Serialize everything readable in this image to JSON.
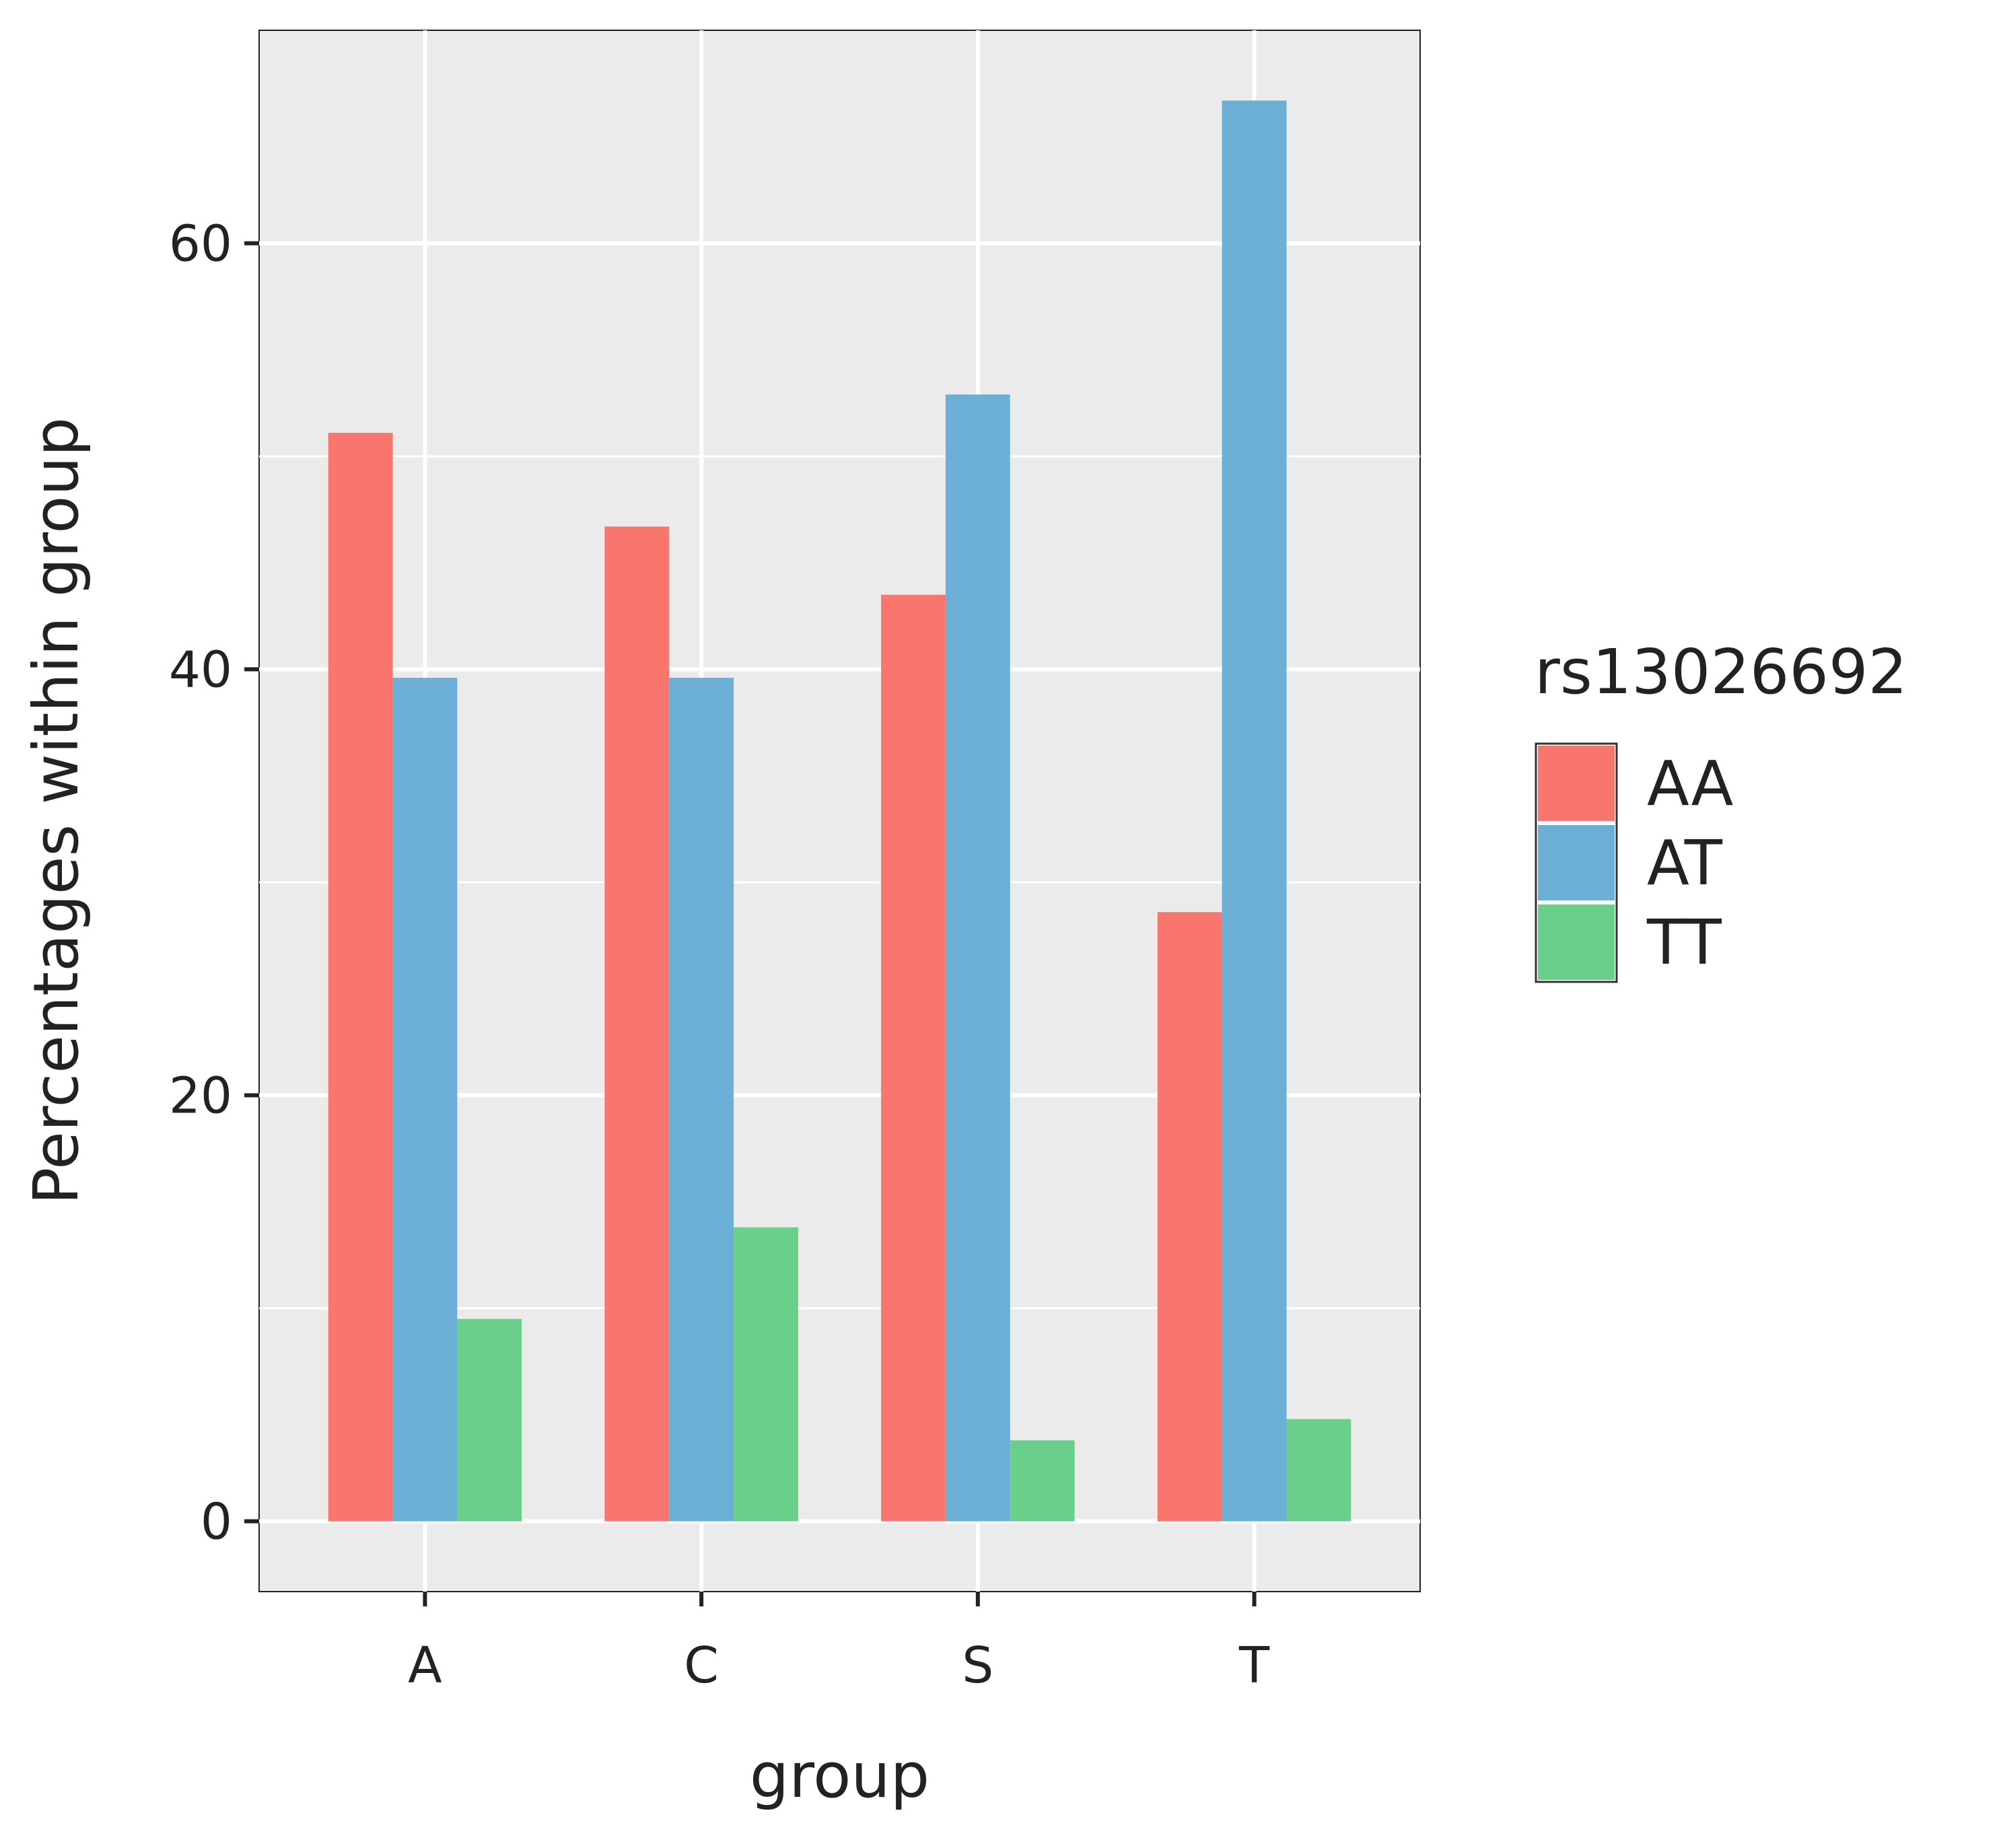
{
  "chart_data": {
    "type": "bar",
    "title": "",
    "xlabel": "group",
    "ylabel": "Percentages within group",
    "categories": [
      "A",
      "C",
      "S",
      "T"
    ],
    "ylim": [
      -3.3,
      70
    ],
    "yticks": [
      0,
      20,
      40,
      60
    ],
    "grid": true,
    "legend": {
      "title": "rs13026692",
      "placement": "right"
    },
    "series": [
      {
        "name": "AA",
        "color": "#F8766D",
        "values": [
          51.1,
          46.7,
          43.5,
          28.6
        ]
      },
      {
        "name": "AT",
        "color": "#6BAED6",
        "values": [
          39.6,
          39.6,
          52.9,
          66.7
        ]
      },
      {
        "name": "TT",
        "color": "#6ACF8A",
        "values": [
          9.5,
          13.8,
          3.8,
          4.8
        ]
      }
    ]
  },
  "colors": {
    "panel_background": "#EBEBEB",
    "grid_line": "#FFFFFF",
    "axis_text": "#222222"
  }
}
